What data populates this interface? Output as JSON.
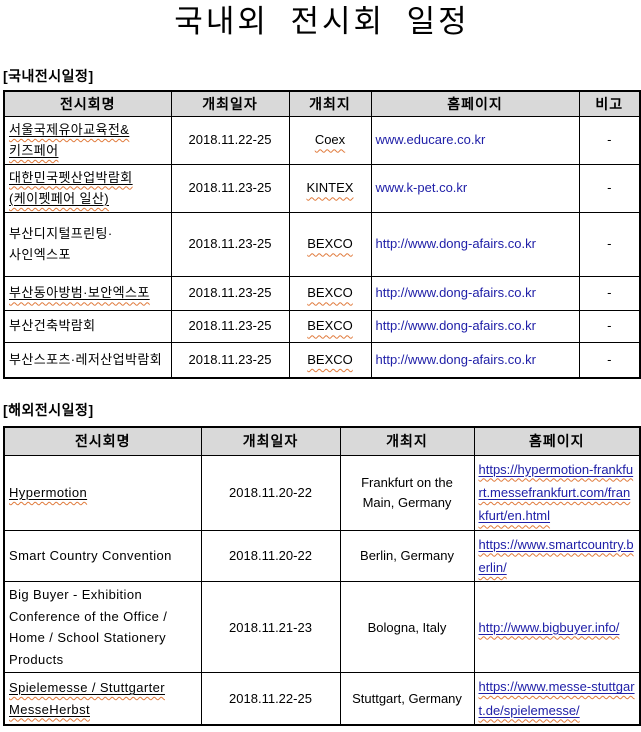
{
  "page": {
    "title": "국내외 전시회 일정"
  },
  "colors": {
    "link_blue": "#2020a8",
    "header_bg": "#d9d9d9",
    "squiggle_orange": "#e0793a",
    "table_border": "#000000"
  },
  "tables": [
    {
      "key": "domestic",
      "section_label": "[국내전시일정]",
      "headers": [
        "전시회명",
        "개최일자",
        "개최지",
        "홈페이지",
        "비고"
      ],
      "rows": [
        {
          "name": "서울국제유아교육전&\n키즈페어",
          "name_style": "underline-wavy",
          "date": "2018.11.22-25",
          "venue": "Coex",
          "venue_style": "wavy",
          "url": "www.educare.co.kr",
          "url_style": "plain-link",
          "note": "-"
        },
        {
          "name": "대한민국펫산업박람회\n(케이펫페어 일산)",
          "name_style": "underline-wavy",
          "date": "2018.11.23-25",
          "venue": "KINTEX",
          "venue_style": "wavy",
          "url": "www.k-pet.co.kr",
          "url_style": "plain-link",
          "note": "-"
        },
        {
          "name": "부산디지털프린팅·\n사인엑스포",
          "name_style": "plain",
          "date": "2018.11.23-25",
          "venue": "BEXCO",
          "venue_style": "wavy",
          "url": "http://www.dong-afairs.co.kr",
          "url_style": "plain-link",
          "note": "-"
        },
        {
          "name": "부산동아방범·보안엑스포",
          "name_style": "underline-wavy",
          "date": "2018.11.23-25",
          "venue": "BEXCO",
          "venue_style": "wavy",
          "url": "http://www.dong-afairs.co.kr",
          "url_style": "plain-link",
          "note": "-"
        },
        {
          "name": "부산건축박람회",
          "name_style": "plain",
          "date": "2018.11.23-25",
          "venue": "BEXCO",
          "venue_style": "wavy",
          "url": "http://www.dong-afairs.co.kr",
          "url_style": "plain-link",
          "note": "-"
        },
        {
          "name": "부산스포츠·레저산업박람회",
          "name_style": "plain",
          "date": "2018.11.23-25",
          "venue": "BEXCO",
          "venue_style": "wavy",
          "url": "http://www.dong-afairs.co.kr",
          "url_style": "plain-link",
          "note": "-"
        }
      ]
    },
    {
      "key": "overseas",
      "section_label": "[해외전시일정]",
      "headers": [
        "전시회명",
        "개최일자",
        "개최지",
        "홈페이지"
      ],
      "rows": [
        {
          "name": "Hypermotion",
          "name_style": "underline-wavy",
          "date": "2018.11.20-22",
          "venue": "Frankfurt on the Main, Germany",
          "venue_style": "plain",
          "url": "https://hypermotion-frankfurt.messefrankfurt.com/frankfurt/en.html",
          "url_style": "underline-wavy-link"
        },
        {
          "name": "Smart Country Convention",
          "name_style": "plain",
          "date": "2018.11.20-22",
          "venue": "Berlin, Germany",
          "venue_style": "plain",
          "url": "https://www.smartcountry.berlin/",
          "url_style": "underline-wavy-link"
        },
        {
          "name": "Big Buyer - Exhibition Conference of the Office / Home / School Stationery Products",
          "name_style": "plain",
          "date": "2018.11.21-23",
          "venue": "Bologna, Italy",
          "venue_style": "plain",
          "url": "http://www.bigbuyer.info/",
          "url_style": "underline-wavy-link"
        },
        {
          "name": "Spielemesse / Stuttgarter MesseHerbst",
          "name_style": "underline-wavy",
          "date": "2018.11.22-25",
          "venue": "Stuttgart, Germany",
          "venue_style": "plain",
          "url": "https://www.messe-stuttgart.de/spielemesse/",
          "url_style": "underline-wavy-link"
        }
      ]
    }
  ]
}
